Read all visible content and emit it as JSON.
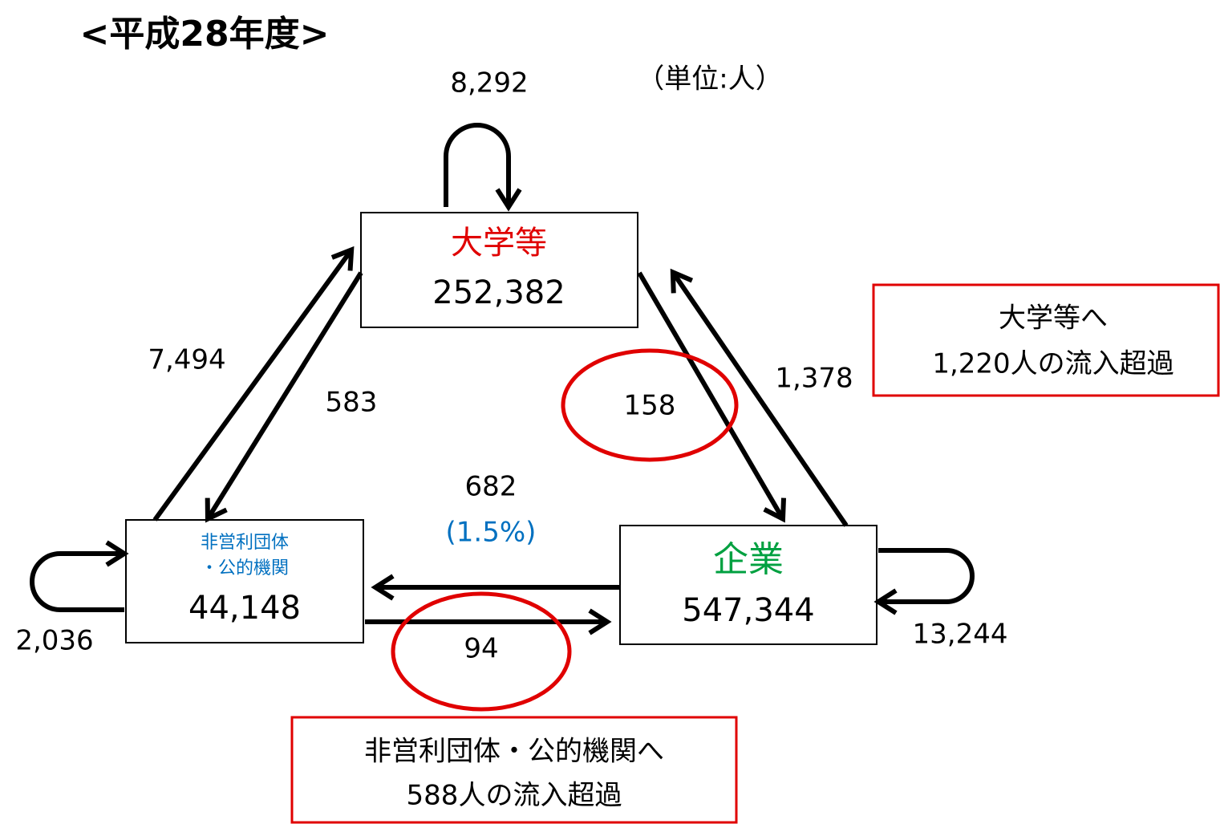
{
  "title": "<平成28年度>",
  "unit": "（単位:人）",
  "nodes": [
    {
      "label": [
        "大学等"
      ],
      "value": "252,382"
    },
    {
      "label": [
        "非営利団体",
        "・公的機関"
      ],
      "value": "44,148"
    },
    {
      "label": [
        "企業"
      ],
      "value": "547,344"
    }
  ],
  "flows": {
    "university_self": "8,292",
    "nonprofit_to_university": "7,494",
    "university_to_nonprofit": "583",
    "university_to_company": "158",
    "company_to_university": "1,378",
    "company_to_nonprofit": "682",
    "company_to_nonprofit_share": "(1.5%)",
    "nonprofit_to_company": "94",
    "nonprofit_self": "2,036",
    "company_self": "13,244"
  },
  "callouts": [
    {
      "lines": [
        "大学等へ",
        "1,220人の流入超過"
      ]
    },
    {
      "lines": [
        "非営利団体・公的機関へ",
        "588人の流入超過"
      ]
    }
  ]
}
